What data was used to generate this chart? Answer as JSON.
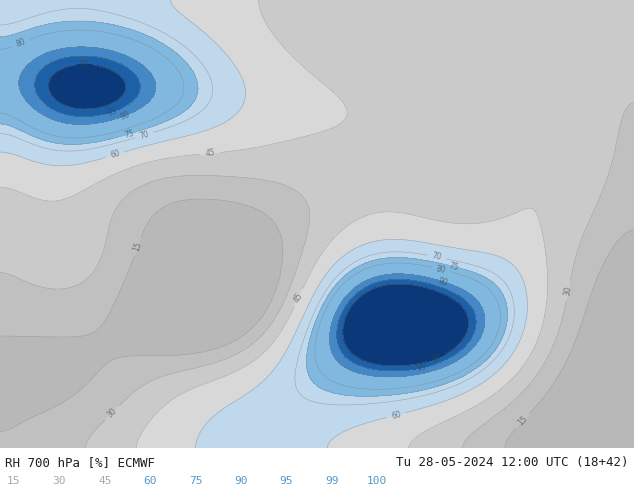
{
  "title_left": "RH 700 hPa [%] ECMWF",
  "title_right": "Tu 28-05-2024 12:00 UTC (18+42)",
  "colorbar_values": [
    "15",
    "30",
    "45",
    "60",
    "75",
    "90",
    "95",
    "99",
    "100"
  ],
  "colorbar_text_colors": [
    "#a8a8a8",
    "#a8a8a8",
    "#a8a8a8",
    "#5599cc",
    "#5599cc",
    "#5599cc",
    "#5599cc",
    "#5599cc",
    "#5599cc"
  ],
  "levels": [
    0,
    15,
    30,
    45,
    60,
    75,
    90,
    95,
    99,
    100
  ],
  "fill_colors": [
    "#b8b8b8",
    "#c0c0c0",
    "#cacaca",
    "#d8d8d8",
    "#c0d8ec",
    "#80b8e0",
    "#4488c8",
    "#1c60a8",
    "#0a3878"
  ],
  "contour_color": "#808080",
  "bg_color": "#ffffff",
  "fig_width": 6.34,
  "fig_height": 4.9,
  "dpi": 100,
  "title_fontsize": 9,
  "label_fontsize": 8
}
